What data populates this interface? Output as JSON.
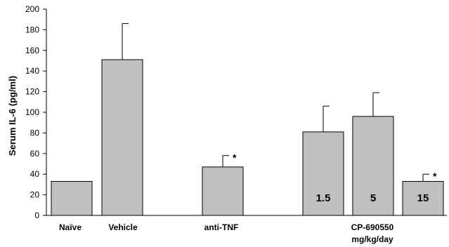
{
  "chart_data": {
    "type": "bar",
    "ylabel": "Serum IL-6 (pg/ml)",
    "ylim": [
      0,
      200
    ],
    "yticks": [
      0,
      20,
      40,
      60,
      80,
      100,
      120,
      140,
      160,
      180,
      200
    ],
    "grid": false,
    "legend": "none",
    "bar_color": "#c0c0c0",
    "bar_edge_color": "#000000",
    "bars": [
      {
        "group": "Naïve",
        "value": 33,
        "error": 0,
        "bar_label": "",
        "significance": ""
      },
      {
        "group": "Vehicle",
        "value": 151,
        "error": 35,
        "bar_label": "",
        "significance": ""
      },
      {
        "group": "anti-TNF",
        "value": 47,
        "error": 11,
        "bar_label": "",
        "significance": "*"
      },
      {
        "group": "CP-690550",
        "value": 81,
        "error": 25,
        "bar_label": "1.5",
        "significance": ""
      },
      {
        "group": "CP-690550",
        "value": 96,
        "error": 23,
        "bar_label": "5",
        "significance": ""
      },
      {
        "group": "CP-690550",
        "value": 33,
        "error": 7,
        "bar_label": "15",
        "significance": "*"
      }
    ],
    "category_labels": [
      {
        "text": "Naïve",
        "sub": ""
      },
      {
        "text": "Vehicle",
        "sub": ""
      },
      {
        "text": "anti-TNF",
        "sub": ""
      },
      {
        "text": "CP-690550",
        "sub": "mg/kg/day"
      }
    ]
  }
}
